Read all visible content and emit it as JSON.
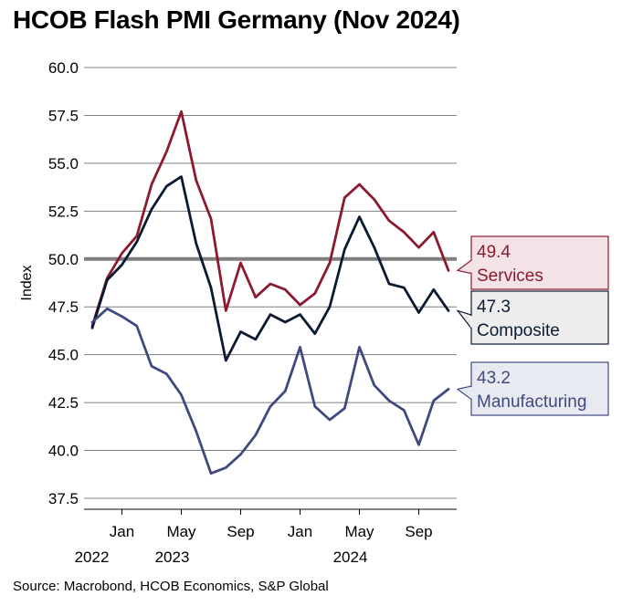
{
  "title": "HCOB Flash PMI Germany (Nov 2024)",
  "source": "Source: Macrobond, HCOB Economics, S&P Global",
  "chart_data": {
    "type": "line",
    "title": "HCOB Flash PMI Germany (Nov 2024)",
    "ylabel": "Index",
    "xlabel": "",
    "ylim": [
      37.5,
      60.0
    ],
    "yticks": [
      "37.5",
      "40.0",
      "42.5",
      "45.0",
      "47.5",
      "50.0",
      "52.5",
      "55.0",
      "57.5",
      "60.0"
    ],
    "reference_line": 50.0,
    "grid": true,
    "x_range": [
      "2022-11",
      "2024-11"
    ],
    "x": [
      "2022-11",
      "2022-12",
      "2023-01",
      "2023-02",
      "2023-03",
      "2023-04",
      "2023-05",
      "2023-06",
      "2023-07",
      "2023-08",
      "2023-09",
      "2023-10",
      "2023-11",
      "2023-12",
      "2024-01",
      "2024-02",
      "2024-03",
      "2024-04",
      "2024-05",
      "2024-06",
      "2024-07",
      "2024-08",
      "2024-09",
      "2024-10",
      "2024-11"
    ],
    "xticks": [
      {
        "date": "2023-01",
        "label": "Jan",
        "year": "2022"
      },
      {
        "date": "2023-05",
        "label": "May",
        "year": "2023"
      },
      {
        "date": "2023-09",
        "label": "Sep",
        "year": ""
      },
      {
        "date": "2024-01",
        "label": "Jan",
        "year": ""
      },
      {
        "date": "2024-05",
        "label": "May",
        "year": "2024"
      },
      {
        "date": "2024-09",
        "label": "Sep",
        "year": ""
      }
    ],
    "series": [
      {
        "name": "Services",
        "color": "#8b1a2e",
        "last_label": "49.4",
        "values": [
          46.5,
          49.0,
          50.3,
          51.2,
          53.9,
          55.6,
          57.7,
          54.1,
          52.1,
          47.3,
          49.8,
          48.0,
          48.7,
          48.4,
          47.6,
          48.2,
          49.8,
          53.2,
          53.9,
          53.1,
          52.0,
          51.4,
          50.6,
          51.4,
          49.4
        ]
      },
      {
        "name": "Composite",
        "color": "#0b1a33",
        "last_label": "47.3",
        "values": [
          46.4,
          48.9,
          49.7,
          50.9,
          52.6,
          53.8,
          54.3,
          50.8,
          48.5,
          44.7,
          46.2,
          45.8,
          47.1,
          46.7,
          47.1,
          46.1,
          47.5,
          50.5,
          52.2,
          50.6,
          48.7,
          48.5,
          47.2,
          48.4,
          47.3
        ]
      },
      {
        "name": "Manufacturing",
        "color": "#3f4a7e",
        "last_label": "43.2",
        "values": [
          46.7,
          47.4,
          47.0,
          46.5,
          44.4,
          44.0,
          42.9,
          41.0,
          38.8,
          39.1,
          39.8,
          40.8,
          42.3,
          43.1,
          45.4,
          42.3,
          41.6,
          42.2,
          45.4,
          43.4,
          42.6,
          42.1,
          40.3,
          42.6,
          43.2
        ]
      }
    ]
  }
}
